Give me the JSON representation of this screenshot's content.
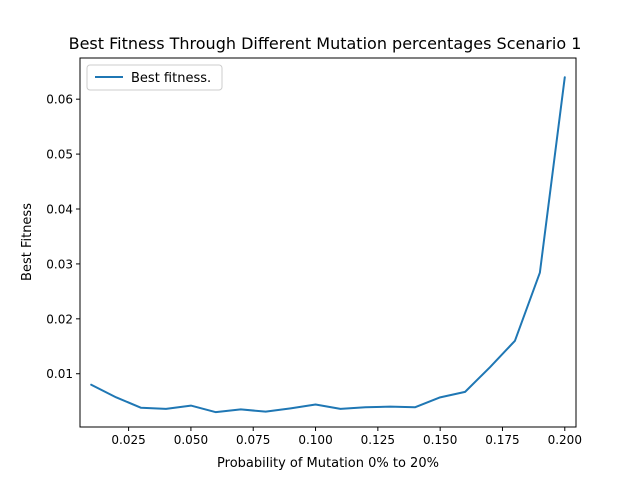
{
  "chart_data": {
    "type": "line",
    "title": "Best Fitness Through Different Mutation  percentages Scenario 1",
    "xlabel": "Probability of Mutation 0% to 20%",
    "ylabel": "Best Fitness",
    "xlim": [
      0.0055,
      0.2045
    ],
    "ylim": [
      0.0003,
      0.0675
    ],
    "xticks": [
      0.025,
      0.05,
      0.075,
      0.1,
      0.125,
      0.15,
      0.175,
      0.2
    ],
    "xtick_labels": [
      "0.025",
      "0.050",
      "0.075",
      "0.100",
      "0.125",
      "0.150",
      "0.175",
      "0.200"
    ],
    "yticks": [
      0.01,
      0.02,
      0.03,
      0.04,
      0.05,
      0.06
    ],
    "ytick_labels": [
      "0.01",
      "0.02",
      "0.03",
      "0.04",
      "0.05",
      "0.06"
    ],
    "grid": false,
    "legend_position": "top-left",
    "series": [
      {
        "name": "Best fitness.",
        "color": "#1f77b4",
        "x": [
          0.01,
          0.02,
          0.03,
          0.04,
          0.05,
          0.06,
          0.07,
          0.08,
          0.09,
          0.1,
          0.11,
          0.12,
          0.13,
          0.14,
          0.15,
          0.16,
          0.17,
          0.18,
          0.19,
          0.2
        ],
        "y": [
          0.008,
          0.0057,
          0.0038,
          0.0036,
          0.0042,
          0.003,
          0.0035,
          0.0031,
          0.0037,
          0.0044,
          0.0036,
          0.0039,
          0.004,
          0.0039,
          0.0057,
          0.0067,
          0.0112,
          0.016,
          0.0284,
          0.064
        ]
      }
    ]
  }
}
